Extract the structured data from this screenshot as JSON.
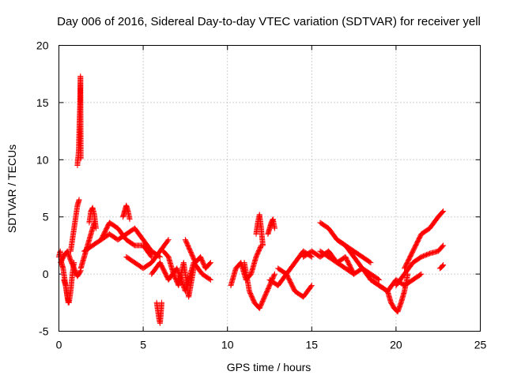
{
  "chart_data": {
    "type": "scatter",
    "title": "Day 006 of 2016, Sidereal Day-to-day VTEC variation (SDTVAR) for receiver yell",
    "xlabel": "GPS time / hours",
    "ylabel": "SDTVAR / TECUs",
    "xlim": [
      0,
      25
    ],
    "ylim": [
      -5,
      20
    ],
    "grid": true,
    "x_ticks": [
      "0",
      "5",
      "10",
      "15",
      "20",
      "25"
    ],
    "y_ticks": [
      "-5",
      "0",
      "5",
      "10",
      "15",
      "20"
    ],
    "marker": "+",
    "color": "#ff0000",
    "series": [
      {
        "name": "SDTVAR",
        "segments": [
          {
            "x": [
              0.0,
              0.08,
              0.15,
              0.25,
              0.35,
              0.45,
              0.55
            ],
            "y": [
              1.5,
              2.0,
              1.0,
              0.5,
              -0.5,
              -1.5,
              -2.5
            ]
          },
          {
            "x": [
              0.3,
              0.4,
              0.5,
              0.6,
              0.7,
              0.8,
              0.9
            ],
            "y": [
              -0.5,
              -1.0,
              -2.0,
              -2.5,
              -1.5,
              0.0,
              1.0
            ]
          },
          {
            "x": [
              0.1,
              0.3,
              0.5,
              0.7,
              0.9,
              1.1,
              1.3
            ],
            "y": [
              1.0,
              1.6,
              2.0,
              1.2,
              0.5,
              -0.2,
              0.3
            ]
          },
          {
            "x": [
              0.7,
              0.8,
              0.9,
              1.0,
              1.1,
              1.2
            ],
            "y": [
              2.0,
              3.0,
              4.0,
              5.0,
              6.0,
              6.5
            ]
          },
          {
            "x": [
              1.1,
              1.12,
              1.15,
              1.18,
              1.2,
              1.22,
              1.25,
              1.28,
              1.3
            ],
            "y": [
              9.5,
              10.0,
              10.3,
              11.0,
              12.2,
              13.4,
              14.8,
              17.3,
              10.1
            ]
          },
          {
            "x": [
              1.3,
              1.5,
              1.7,
              1.9,
              2.1
            ],
            "y": [
              0.5,
              1.5,
              2.5,
              3.5,
              4.5
            ]
          },
          {
            "x": [
              1.8,
              1.9,
              2.0,
              2.1,
              2.2
            ],
            "y": [
              4.5,
              5.5,
              5.8,
              5.2,
              4.0
            ]
          },
          {
            "x": [
              1.5,
              2.0,
              2.5,
              3.0,
              3.5,
              4.0,
              4.5,
              5.0,
              5.5,
              6.0
            ],
            "y": [
              2.0,
              2.5,
              3.0,
              3.5,
              3.0,
              3.5,
              4.0,
              3.0,
              2.0,
              1.5
            ]
          },
          {
            "x": [
              2.5,
              3.0,
              3.5,
              4.0,
              4.5,
              5.0,
              5.5
            ],
            "y": [
              3.0,
              4.5,
              4.0,
              3.0,
              2.5,
              2.5,
              1.5
            ]
          },
          {
            "x": [
              3.8,
              3.9,
              4.0,
              4.1,
              4.2
            ],
            "y": [
              5.0,
              5.5,
              6.0,
              5.5,
              4.8
            ]
          },
          {
            "x": [
              4.0,
              4.5,
              5.0,
              5.5,
              6.0,
              6.5
            ],
            "y": [
              1.5,
              1.0,
              0.5,
              1.0,
              2.0,
              3.0
            ]
          },
          {
            "x": [
              5.8,
              5.85,
              5.9,
              5.95,
              6.0,
              6.05,
              6.1
            ],
            "y": [
              -2.5,
              -3.0,
              -3.5,
              -4.0,
              -4.3,
              -3.5,
              -2.5
            ]
          },
          {
            "x": [
              5.5,
              6.0,
              6.5,
              7.0,
              7.5,
              8.0,
              8.5,
              9.0
            ],
            "y": [
              0.0,
              1.0,
              -0.5,
              0.5,
              -1.5,
              1.0,
              0.0,
              -0.5
            ]
          },
          {
            "x": [
              6.2,
              6.5,
              6.8,
              7.1,
              7.4,
              7.7,
              8.0
            ],
            "y": [
              2.0,
              1.5,
              0.0,
              -1.0,
              1.0,
              -2.0,
              0.5
            ]
          },
          {
            "x": [
              7.5,
              7.8,
              8.1,
              8.4,
              8.7,
              9.0
            ],
            "y": [
              3.0,
              2.0,
              1.0,
              1.5,
              0.5,
              1.0
            ]
          },
          {
            "x": [
              10.2,
              10.5,
              10.8,
              11.1,
              11.4,
              11.7,
              12.0
            ],
            "y": [
              -1.0,
              0.5,
              1.0,
              -0.5,
              0.0,
              1.5,
              2.5
            ]
          },
          {
            "x": [
              11.0,
              11.3,
              11.6,
              11.9,
              12.2,
              12.5,
              12.8
            ],
            "y": [
              1.0,
              -1.5,
              -2.5,
              -3.0,
              -2.0,
              -1.0,
              0.0
            ]
          },
          {
            "x": [
              11.7,
              11.8,
              11.9,
              12.0,
              12.1
            ],
            "y": [
              3.5,
              4.5,
              5.2,
              4.0,
              2.5
            ]
          },
          {
            "x": [
              12.4,
              12.5,
              12.6,
              12.7,
              12.8
            ],
            "y": [
              3.5,
              4.0,
              4.5,
              4.8,
              4.0
            ]
          },
          {
            "x": [
              12.5,
              13.0,
              13.5,
              14.0,
              14.5,
              15.0
            ],
            "y": [
              -0.5,
              -1.0,
              0.0,
              -1.5,
              -2.0,
              -1.0
            ]
          },
          {
            "x": [
              13.0,
              13.5,
              14.0,
              14.5,
              15.0
            ],
            "y": [
              0.5,
              0.0,
              1.0,
              2.0,
              1.5
            ]
          },
          {
            "x": [
              14.5,
              15.0,
              15.5,
              16.0,
              16.5,
              17.0,
              17.5
            ],
            "y": [
              1.5,
              2.0,
              1.5,
              2.0,
              1.0,
              1.5,
              0.0
            ]
          },
          {
            "x": [
              15.5,
              16.0,
              16.5,
              17.0,
              17.5,
              18.0,
              18.5
            ],
            "y": [
              4.5,
              4.0,
              3.0,
              2.5,
              2.0,
              1.5,
              1.0
            ]
          },
          {
            "x": [
              15.5,
              16.0,
              16.5,
              17.0,
              17.5,
              18.0,
              18.5,
              19.0
            ],
            "y": [
              2.0,
              1.5,
              1.0,
              0.5,
              0.0,
              0.5,
              0.0,
              -0.5
            ]
          },
          {
            "x": [
              16.5,
              17.0,
              17.5,
              18.0,
              18.5,
              19.0,
              19.5
            ],
            "y": [
              3.0,
              2.5,
              1.5,
              0.5,
              -0.5,
              -1.0,
              -1.5
            ]
          },
          {
            "x": [
              18.5,
              19.0,
              19.5,
              20.0,
              20.5,
              21.0,
              21.5
            ],
            "y": [
              -0.5,
              -1.0,
              -1.5,
              -0.5,
              -1.0,
              -0.5,
              0.0
            ]
          },
          {
            "x": [
              19.5,
              19.7,
              19.9,
              20.1,
              20.3,
              20.5,
              20.7
            ],
            "y": [
              -1.5,
              -2.5,
              -3.0,
              -3.3,
              -2.5,
              -1.5,
              0.0
            ]
          },
          {
            "x": [
              20.0,
              20.5,
              21.0,
              21.5,
              22.0,
              22.5,
              22.8
            ],
            "y": [
              -1.0,
              0.0,
              1.0,
              1.5,
              1.8,
              2.0,
              2.5
            ]
          },
          {
            "x": [
              20.5,
              21.0,
              21.5,
              22.0,
              22.5,
              22.8
            ],
            "y": [
              0.5,
              2.0,
              3.5,
              4.0,
              5.0,
              5.5
            ]
          },
          {
            "x": [
              22.6,
              22.7,
              22.8
            ],
            "y": [
              0.5,
              0.6,
              0.8
            ]
          }
        ]
      }
    ]
  }
}
